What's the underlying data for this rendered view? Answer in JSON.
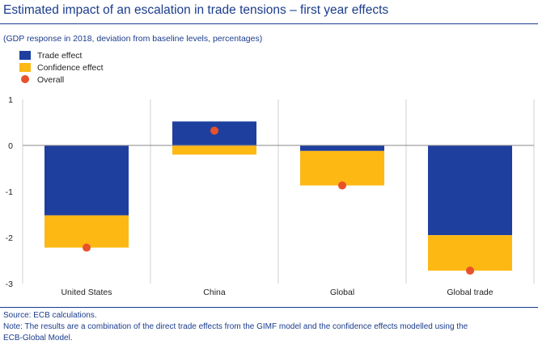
{
  "title": "Estimated impact of an escalation in trade tensions – first year effects",
  "subtitle": "(GDP response in 2018, deviation from baseline levels, percentages)",
  "source": "Source: ECB calculations.",
  "note_line1": "Note: The results are a combination of the direct trade effects from the GIMF model and the confidence effects modelled using the",
  "note_line2": "ECB-Global Model.",
  "colors": {
    "trade": "#1f3f9f",
    "confidence": "#fdb813",
    "overall": "#e8512a",
    "text": "#1a3c8c"
  },
  "chart_data": {
    "type": "bar",
    "stacked": true,
    "categories": [
      "United States",
      "China",
      "Global",
      "Global trade"
    ],
    "series": [
      {
        "name": "Trade effect",
        "values": [
          -1.52,
          0.52,
          -0.12,
          -1.95
        ]
      },
      {
        "name": "Confidence effect",
        "values": [
          -0.7,
          -0.2,
          -0.75,
          -0.77
        ]
      }
    ],
    "overall": {
      "name": "Overall",
      "values": [
        -2.22,
        0.32,
        -0.87,
        -2.72
      ]
    },
    "ylim": [
      -3,
      1
    ],
    "yticks": [
      1,
      0,
      -1,
      -2,
      -3
    ],
    "legend": "top-left",
    "grid": "vertical separators"
  }
}
